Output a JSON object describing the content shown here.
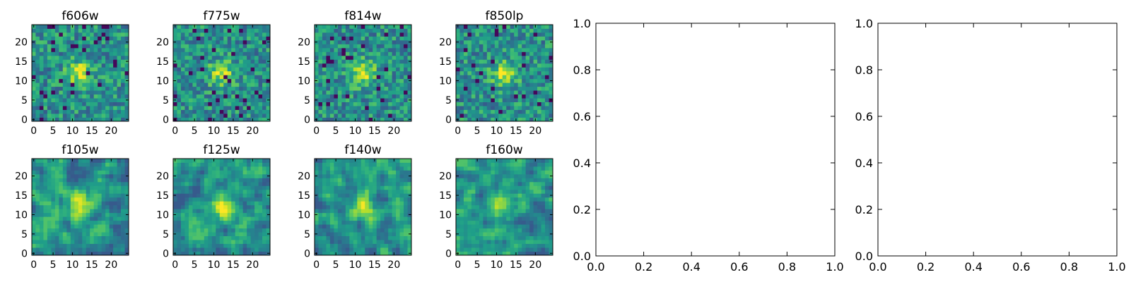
{
  "chart_data": [
    {
      "type": "heatmap",
      "title": "f606w",
      "xlim": [
        -0.5,
        24.5
      ],
      "ylim": [
        -0.5,
        24.5
      ],
      "xticks": [
        0,
        5,
        10,
        15,
        20
      ],
      "yticks": [
        0,
        5,
        10,
        15,
        20
      ],
      "xticklabels": [
        "0",
        "5",
        "10",
        "15",
        "20"
      ],
      "yticklabels": [
        "0",
        "5",
        "10",
        "15",
        "20"
      ],
      "colormap": "viridis",
      "grid": "25x25",
      "seed": 11
    },
    {
      "type": "heatmap",
      "title": "f775w",
      "xlim": [
        -0.5,
        24.5
      ],
      "ylim": [
        -0.5,
        24.5
      ],
      "xticks": [
        0,
        5,
        10,
        15,
        20
      ],
      "yticks": [
        0,
        5,
        10,
        15,
        20
      ],
      "xticklabels": [
        "0",
        "5",
        "10",
        "15",
        "20"
      ],
      "yticklabels": [
        "0",
        "5",
        "10",
        "15",
        "20"
      ],
      "colormap": "viridis",
      "grid": "25x25",
      "seed": 23
    },
    {
      "type": "heatmap",
      "title": "f814w",
      "xlim": [
        -0.5,
        24.5
      ],
      "ylim": [
        -0.5,
        24.5
      ],
      "xticks": [
        0,
        5,
        10,
        15,
        20
      ],
      "yticks": [
        0,
        5,
        10,
        15,
        20
      ],
      "xticklabels": [
        "0",
        "5",
        "10",
        "15",
        "20"
      ],
      "yticklabels": [
        "0",
        "5",
        "10",
        "15",
        "20"
      ],
      "colormap": "viridis",
      "grid": "25x25",
      "seed": 37
    },
    {
      "type": "heatmap",
      "title": "f850lp",
      "xlim": [
        -0.5,
        24.5
      ],
      "ylim": [
        -0.5,
        24.5
      ],
      "xticks": [
        0,
        5,
        10,
        15,
        20
      ],
      "yticks": [
        0,
        5,
        10,
        15,
        20
      ],
      "xticklabels": [
        "0",
        "5",
        "10",
        "15",
        "20"
      ],
      "yticklabels": [
        "0",
        "5",
        "10",
        "15",
        "20"
      ],
      "colormap": "viridis",
      "grid": "25x25",
      "seed": 41
    },
    {
      "type": "heatmap",
      "title": "f105w",
      "xlim": [
        -0.5,
        24.5
      ],
      "ylim": [
        -0.5,
        24.5
      ],
      "xticks": [
        0,
        5,
        10,
        15,
        20
      ],
      "yticks": [
        0,
        5,
        10,
        15,
        20
      ],
      "xticklabels": [
        "0",
        "5",
        "10",
        "15",
        "20"
      ],
      "yticklabels": [
        "0",
        "5",
        "10",
        "15",
        "20"
      ],
      "colormap": "viridis",
      "grid": "25x25",
      "seed": 53
    },
    {
      "type": "heatmap",
      "title": "f125w",
      "xlim": [
        -0.5,
        24.5
      ],
      "ylim": [
        -0.5,
        24.5
      ],
      "xticks": [
        0,
        5,
        10,
        15,
        20
      ],
      "yticks": [
        0,
        5,
        10,
        15,
        20
      ],
      "xticklabels": [
        "0",
        "5",
        "10",
        "15",
        "20"
      ],
      "yticklabels": [
        "0",
        "5",
        "10",
        "15",
        "20"
      ],
      "colormap": "viridis",
      "grid": "25x25",
      "seed": 67
    },
    {
      "type": "heatmap",
      "title": "f140w",
      "xlim": [
        -0.5,
        24.5
      ],
      "ylim": [
        -0.5,
        24.5
      ],
      "xticks": [
        0,
        5,
        10,
        15,
        20
      ],
      "yticks": [
        0,
        5,
        10,
        15,
        20
      ],
      "xticklabels": [
        "0",
        "5",
        "10",
        "15",
        "20"
      ],
      "yticklabels": [
        "0",
        "5",
        "10",
        "15",
        "20"
      ],
      "colormap": "viridis",
      "grid": "25x25",
      "seed": 79
    },
    {
      "type": "heatmap",
      "title": "f160w",
      "xlim": [
        -0.5,
        24.5
      ],
      "ylim": [
        -0.5,
        24.5
      ],
      "xticks": [
        0,
        5,
        10,
        15,
        20
      ],
      "yticks": [
        0,
        5,
        10,
        15,
        20
      ],
      "xticklabels": [
        "0",
        "5",
        "10",
        "15",
        "20"
      ],
      "yticklabels": [
        "0",
        "5",
        "10",
        "15",
        "20"
      ],
      "colormap": "viridis",
      "grid": "25x25",
      "seed": 83
    },
    {
      "type": "line",
      "title": "",
      "series": [],
      "xlim": [
        0,
        1
      ],
      "ylim": [
        0,
        1
      ],
      "xticks": [
        0,
        0.2,
        0.4,
        0.6,
        0.8,
        1.0
      ],
      "yticks": [
        0,
        0.2,
        0.4,
        0.6,
        0.8,
        1.0
      ],
      "xticklabels": [
        "0.0",
        "0.2",
        "0.4",
        "0.6",
        "0.8",
        "1.0"
      ],
      "yticklabels": [
        "0.0",
        "0.2",
        "0.4",
        "0.6",
        "0.8",
        "1.0"
      ],
      "grid": false
    },
    {
      "type": "line",
      "title": "",
      "series": [],
      "xlim": [
        0,
        1
      ],
      "ylim": [
        0,
        1
      ],
      "xticks": [
        0,
        0.2,
        0.4,
        0.6,
        0.8,
        1.0
      ],
      "yticks": [
        0,
        0.2,
        0.4,
        0.6,
        0.8,
        1.0
      ],
      "xticklabels": [
        "0.0",
        "0.2",
        "0.4",
        "0.6",
        "0.8",
        "1.0"
      ],
      "yticklabels": [
        "0.0",
        "0.2",
        "0.4",
        "0.6",
        "0.8",
        "1.0"
      ],
      "grid": false
    }
  ]
}
